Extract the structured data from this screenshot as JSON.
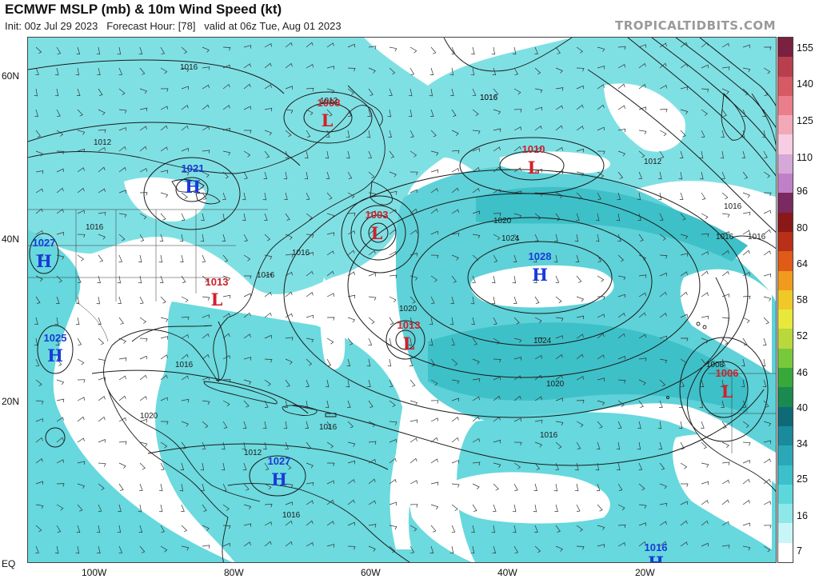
{
  "header": {
    "title": "ECMWF MSLP (mb) & 10m Wind Speed (kt)",
    "subtitle": "Init: 00z Jul 29 2023   Forecast Hour: [78]   valid at 06z Tue, Aug 01 2023",
    "brand": "TROPICALTIDBITS.COM"
  },
  "axes": {
    "lat_labels": [
      "60N",
      "40N",
      "20N",
      "EQ"
    ],
    "lon_labels": [
      "100W",
      "80W",
      "60W",
      "40W",
      "20W"
    ]
  },
  "colorbar": {
    "ticks": [
      "155",
      "140",
      "125",
      "110",
      "96",
      "80",
      "64",
      "58",
      "52",
      "46",
      "40",
      "34",
      "25",
      "16",
      "7"
    ],
    "colors": [
      "#7a2040",
      "#b8404e",
      "#d65a64",
      "#ea7e8a",
      "#f3a8b8",
      "#f8cce2",
      "#d6a8d8",
      "#c080c8",
      "#7a2a60",
      "#8a1818",
      "#b83018",
      "#e05a18",
      "#f09a20",
      "#f0c828",
      "#e8e83c",
      "#b8d83c",
      "#78c83c",
      "#38a83c",
      "#1a8a50",
      "#0f6a78",
      "#1a8a9c",
      "#2aa8b8",
      "#3cc0cc",
      "#5cd8dc",
      "#8ee8ea",
      "#c8f6f8",
      "#ffffff"
    ]
  },
  "systems": [
    {
      "type": "L",
      "pressure": "1008",
      "color": "#d0202a"
    },
    {
      "type": "L",
      "pressure": "1010",
      "color": "#d0202a"
    },
    {
      "type": "H",
      "pressure": "1021",
      "color": "#1a3ad8"
    },
    {
      "type": "L",
      "pressure": "1003",
      "color": "#d0202a"
    },
    {
      "type": "H",
      "pressure": "1027",
      "color": "#1a3ad8"
    },
    {
      "type": "L",
      "pressure": "1013",
      "color": "#d0202a"
    },
    {
      "type": "H",
      "pressure": "1028",
      "color": "#1a3ad8"
    },
    {
      "type": "L",
      "pressure": "1013",
      "color": "#d0202a"
    },
    {
      "type": "H",
      "pressure": "1025",
      "color": "#1a3ad8"
    },
    {
      "type": "L",
      "pressure": "1006",
      "color": "#d0202a"
    },
    {
      "type": "H",
      "pressure": "1027",
      "color": "#1a3ad8"
    },
    {
      "type": "H",
      "pressure": "1016",
      "color": "#1a3ad8"
    }
  ],
  "isobar_labels": [
    "1016",
    "1012",
    "1012",
    "1016",
    "1012",
    "1016",
    "1016",
    "1020",
    "1024",
    "1020",
    "1024",
    "1020",
    "1016",
    "1016",
    "1012",
    "1016",
    "1008",
    "1016",
    "1016",
    "1020",
    "1016",
    "1016",
    "1016",
    "1016"
  ],
  "style": {
    "wind_fill": "#5ed6dc",
    "wind_fill_light": "#9eeaec",
    "wind_fill_strong": "#2fb4c0",
    "land_line": "#1a1a1a",
    "isobar_color": "#1a1a1a"
  }
}
